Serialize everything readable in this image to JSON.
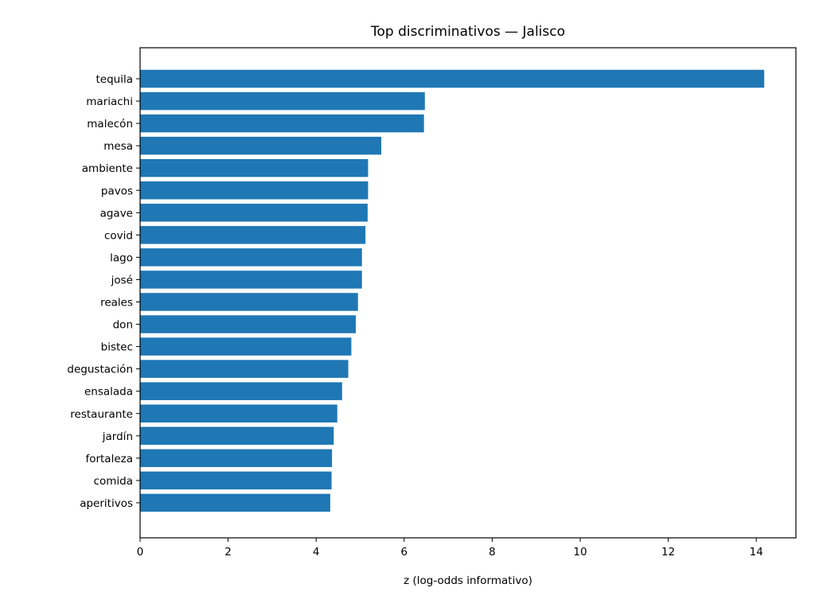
{
  "chart_data": {
    "type": "bar",
    "orientation": "horizontal",
    "title": "Top discriminativos — Jalisco",
    "xlabel": "z (log-odds informativo)",
    "ylabel": "",
    "xlim": [
      0,
      14.9
    ],
    "xticks": [
      0,
      2,
      4,
      6,
      8,
      10,
      12,
      14
    ],
    "grid": false,
    "bar_color": "#1f77b4",
    "categories": [
      "tequila",
      "mariachi",
      "malecón",
      "mesa",
      "ambiente",
      "pavos",
      "agave",
      "covid",
      "lago",
      "josé",
      "reales",
      "don",
      "bistec",
      "degustación",
      "ensalada",
      "restaurante",
      "jardín",
      "fortaleza",
      "comida",
      "aperitivos"
    ],
    "values": [
      14.18,
      6.47,
      6.45,
      5.48,
      5.18,
      5.18,
      5.17,
      5.12,
      5.04,
      5.04,
      4.95,
      4.9,
      4.8,
      4.73,
      4.59,
      4.48,
      4.4,
      4.36,
      4.35,
      4.32
    ]
  }
}
